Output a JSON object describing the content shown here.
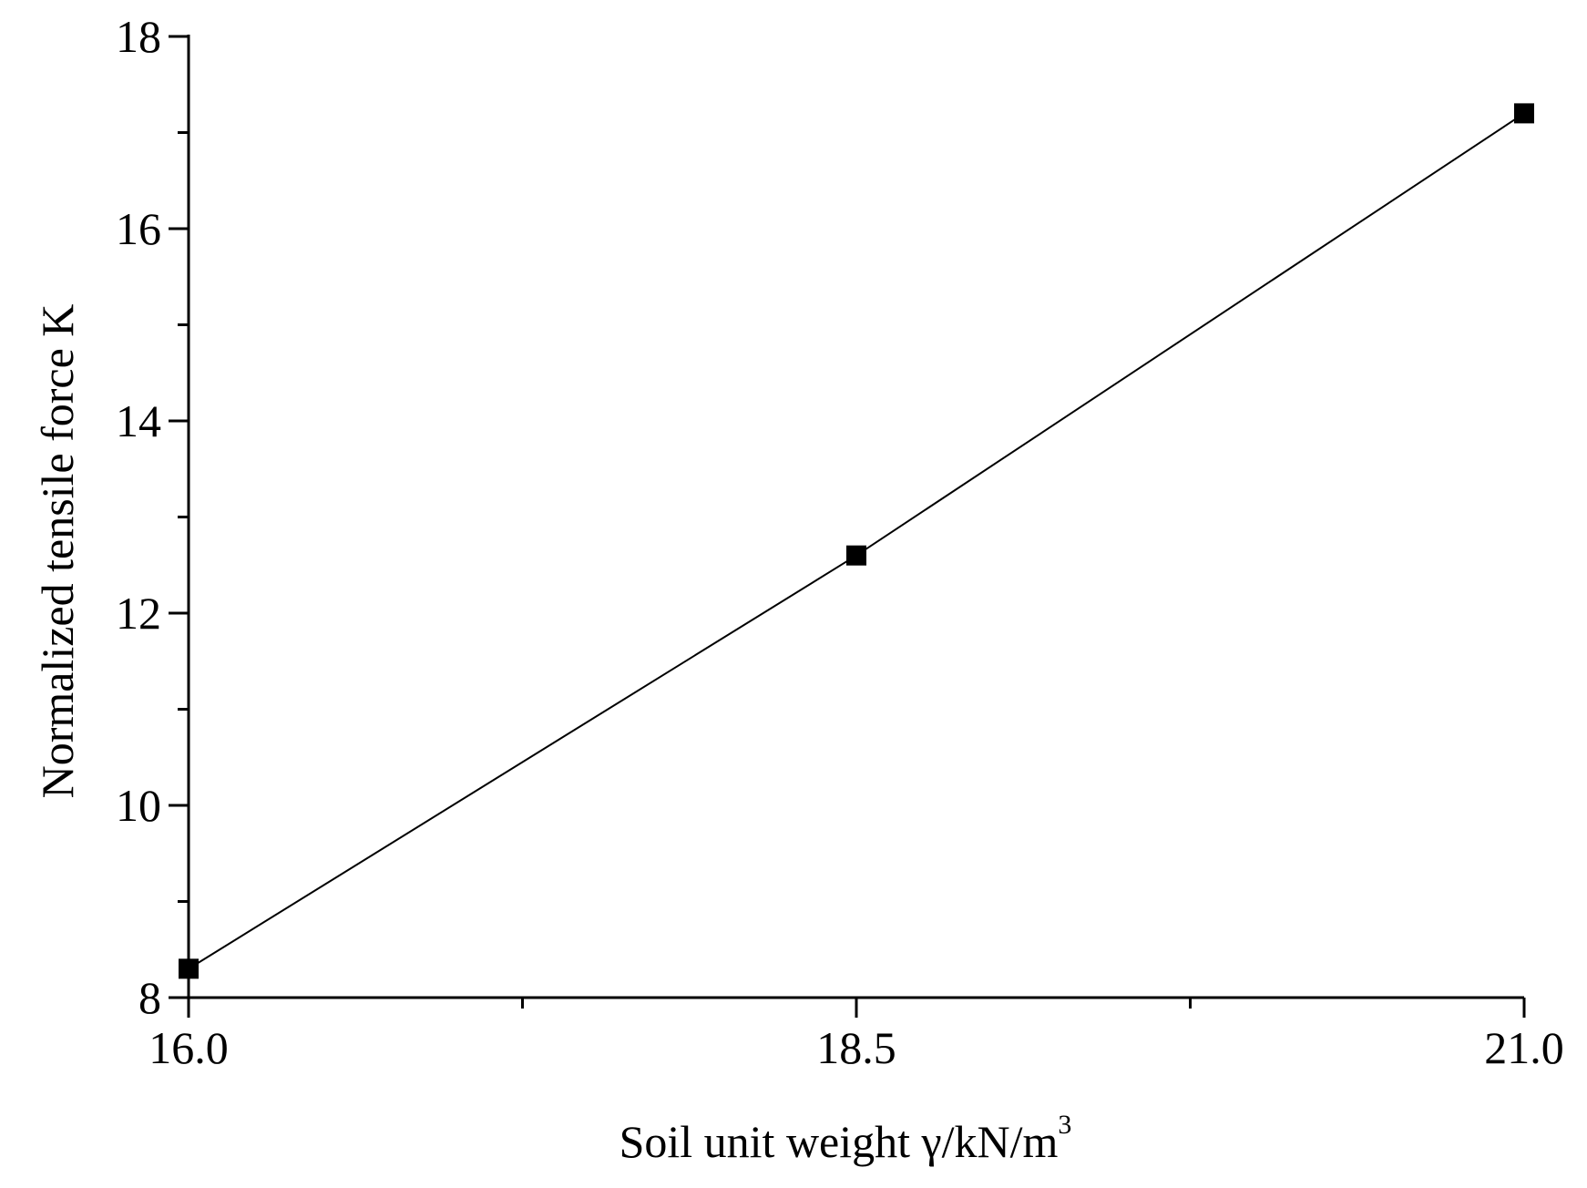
{
  "chart_data": {
    "type": "line",
    "title": "",
    "xlabel": "Soil unit weight γ/kN/m",
    "xlabel_superscript": "3",
    "ylabel": "Normalized tensile force K",
    "xlim": [
      16.0,
      21.0
    ],
    "ylim": [
      8,
      18
    ],
    "x_ticks": [
      16.0,
      18.5,
      21.0
    ],
    "x_tick_labels": [
      "16.0",
      "18.5",
      "21.0"
    ],
    "x_minor_ticks": [
      17.25,
      19.75
    ],
    "y_ticks": [
      8,
      10,
      12,
      14,
      16,
      18
    ],
    "y_tick_labels": [
      "8",
      "10",
      "12",
      "14",
      "16",
      "18"
    ],
    "y_minor_ticks": [
      9,
      11,
      13,
      15,
      17
    ],
    "grid": false,
    "legend": false,
    "marker": "square",
    "colors": {
      "axis": "#000000",
      "line": "#000000",
      "marker": "#000000",
      "background": "#ffffff"
    },
    "series": [
      {
        "x": [
          16.0,
          18.5,
          21.0
        ],
        "y": [
          8.3,
          12.6,
          17.2
        ]
      }
    ]
  }
}
